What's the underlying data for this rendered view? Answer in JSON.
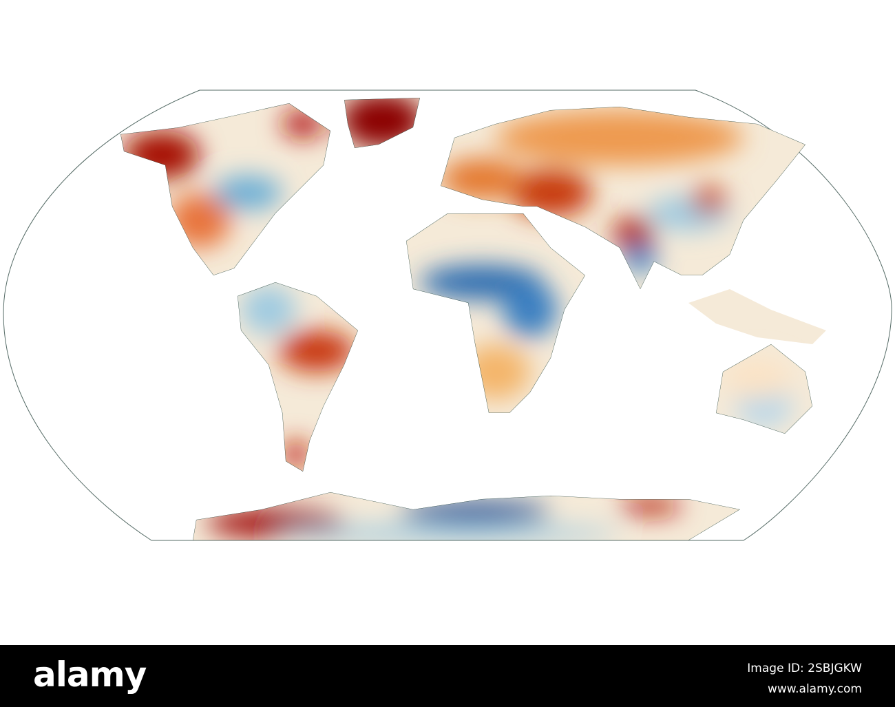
{
  "watermark": {
    "brand": "alamy",
    "image_id": "Image ID: 2SBJGKW",
    "url": "www.alamy.com"
  }
}
